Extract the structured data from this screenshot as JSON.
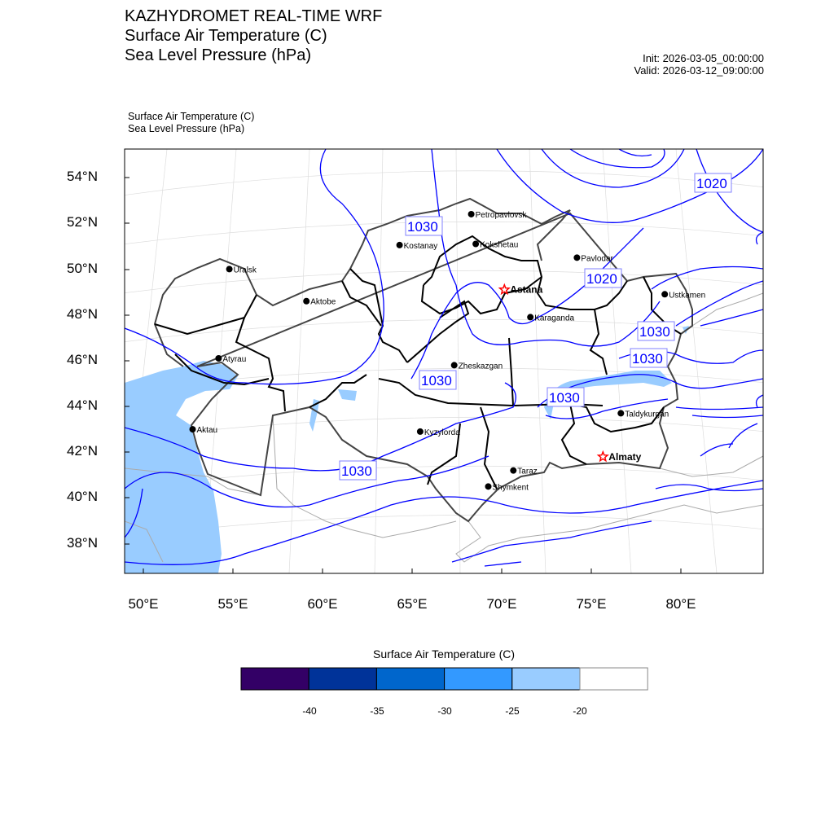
{
  "header": {
    "title": "KAZHYDROMET REAL-TIME WRF",
    "subtitle1": "Surface Air Temperature  (C)",
    "subtitle2": "Sea Level Pressure  (hPa)",
    "init": "Init: 2026-03-05_00:00:00",
    "valid": "Valid: 2026-03-12_09:00:00"
  },
  "plot": {
    "field1": "Surface Air Temperature   (C)",
    "field2": "Sea Level Pressure   (hPa)",
    "lat_ticks": [
      "54°N",
      "52°N",
      "50°N",
      "48°N",
      "46°N",
      "44°N",
      "42°N",
      "40°N",
      "38°N"
    ],
    "lon_ticks": [
      "50°E",
      "55°E",
      "60°E",
      "65°E",
      "70°E",
      "75°E",
      "80°E"
    ]
  },
  "cities": [
    {
      "name": "Petropavlovsk",
      "lon": 68.3,
      "lat": 52.4,
      "capital": false
    },
    {
      "name": "Kostanay",
      "lon": 64.3,
      "lat": 51.05,
      "capital": false
    },
    {
      "name": "Kokshetau",
      "lon": 68.55,
      "lat": 51.1,
      "capital": false
    },
    {
      "name": "Pavlodar",
      "lon": 74.2,
      "lat": 50.5,
      "capital": false
    },
    {
      "name": "Astana",
      "lon": 70.15,
      "lat": 49.1,
      "capital": true
    },
    {
      "name": "Uralsk",
      "lon": 54.8,
      "lat": 50.0,
      "capital": false
    },
    {
      "name": "Aktobe",
      "lon": 59.1,
      "lat": 48.6,
      "capital": false
    },
    {
      "name": "Ustkamen",
      "lon": 79.1,
      "lat": 48.9,
      "capital": false
    },
    {
      "name": "Karaganda",
      "lon": 71.6,
      "lat": 47.9,
      "capital": false
    },
    {
      "name": "Atyrau",
      "lon": 54.2,
      "lat": 46.1,
      "capital": false
    },
    {
      "name": "Zheskazgan",
      "lon": 67.35,
      "lat": 45.8,
      "capital": false
    },
    {
      "name": "Aktau",
      "lon": 52.75,
      "lat": 43.0,
      "capital": false
    },
    {
      "name": "Kyzylorda",
      "lon": 65.45,
      "lat": 42.9,
      "capital": false
    },
    {
      "name": "Taldykurgan",
      "lon": 76.65,
      "lat": 43.7,
      "capital": false
    },
    {
      "name": "Almaty",
      "lon": 75.65,
      "lat": 41.8,
      "capital": true
    },
    {
      "name": "Taraz",
      "lon": 70.65,
      "lat": 41.2,
      "capital": false
    },
    {
      "name": "Shymkent",
      "lon": 69.25,
      "lat": 40.5,
      "capital": false
    }
  ],
  "contour_labels": [
    "1020",
    "1030",
    "1020",
    "1030",
    "1030",
    "1030",
    "1030",
    "1030"
  ],
  "colorbar": {
    "title": "Surface Air Temperature (C)",
    "levels": [
      "-40",
      "-35",
      "-30",
      "-25",
      "-20"
    ],
    "colors": [
      "#330066",
      "#003399",
      "#0066cc",
      "#3399ff",
      "#99ccff",
      "#ffffff"
    ]
  },
  "colors": {
    "contour": "#0000ff",
    "cold_fill": "#99ccff",
    "border": "#444444",
    "oblast": "#000000",
    "capital_star": "#ff0000"
  }
}
